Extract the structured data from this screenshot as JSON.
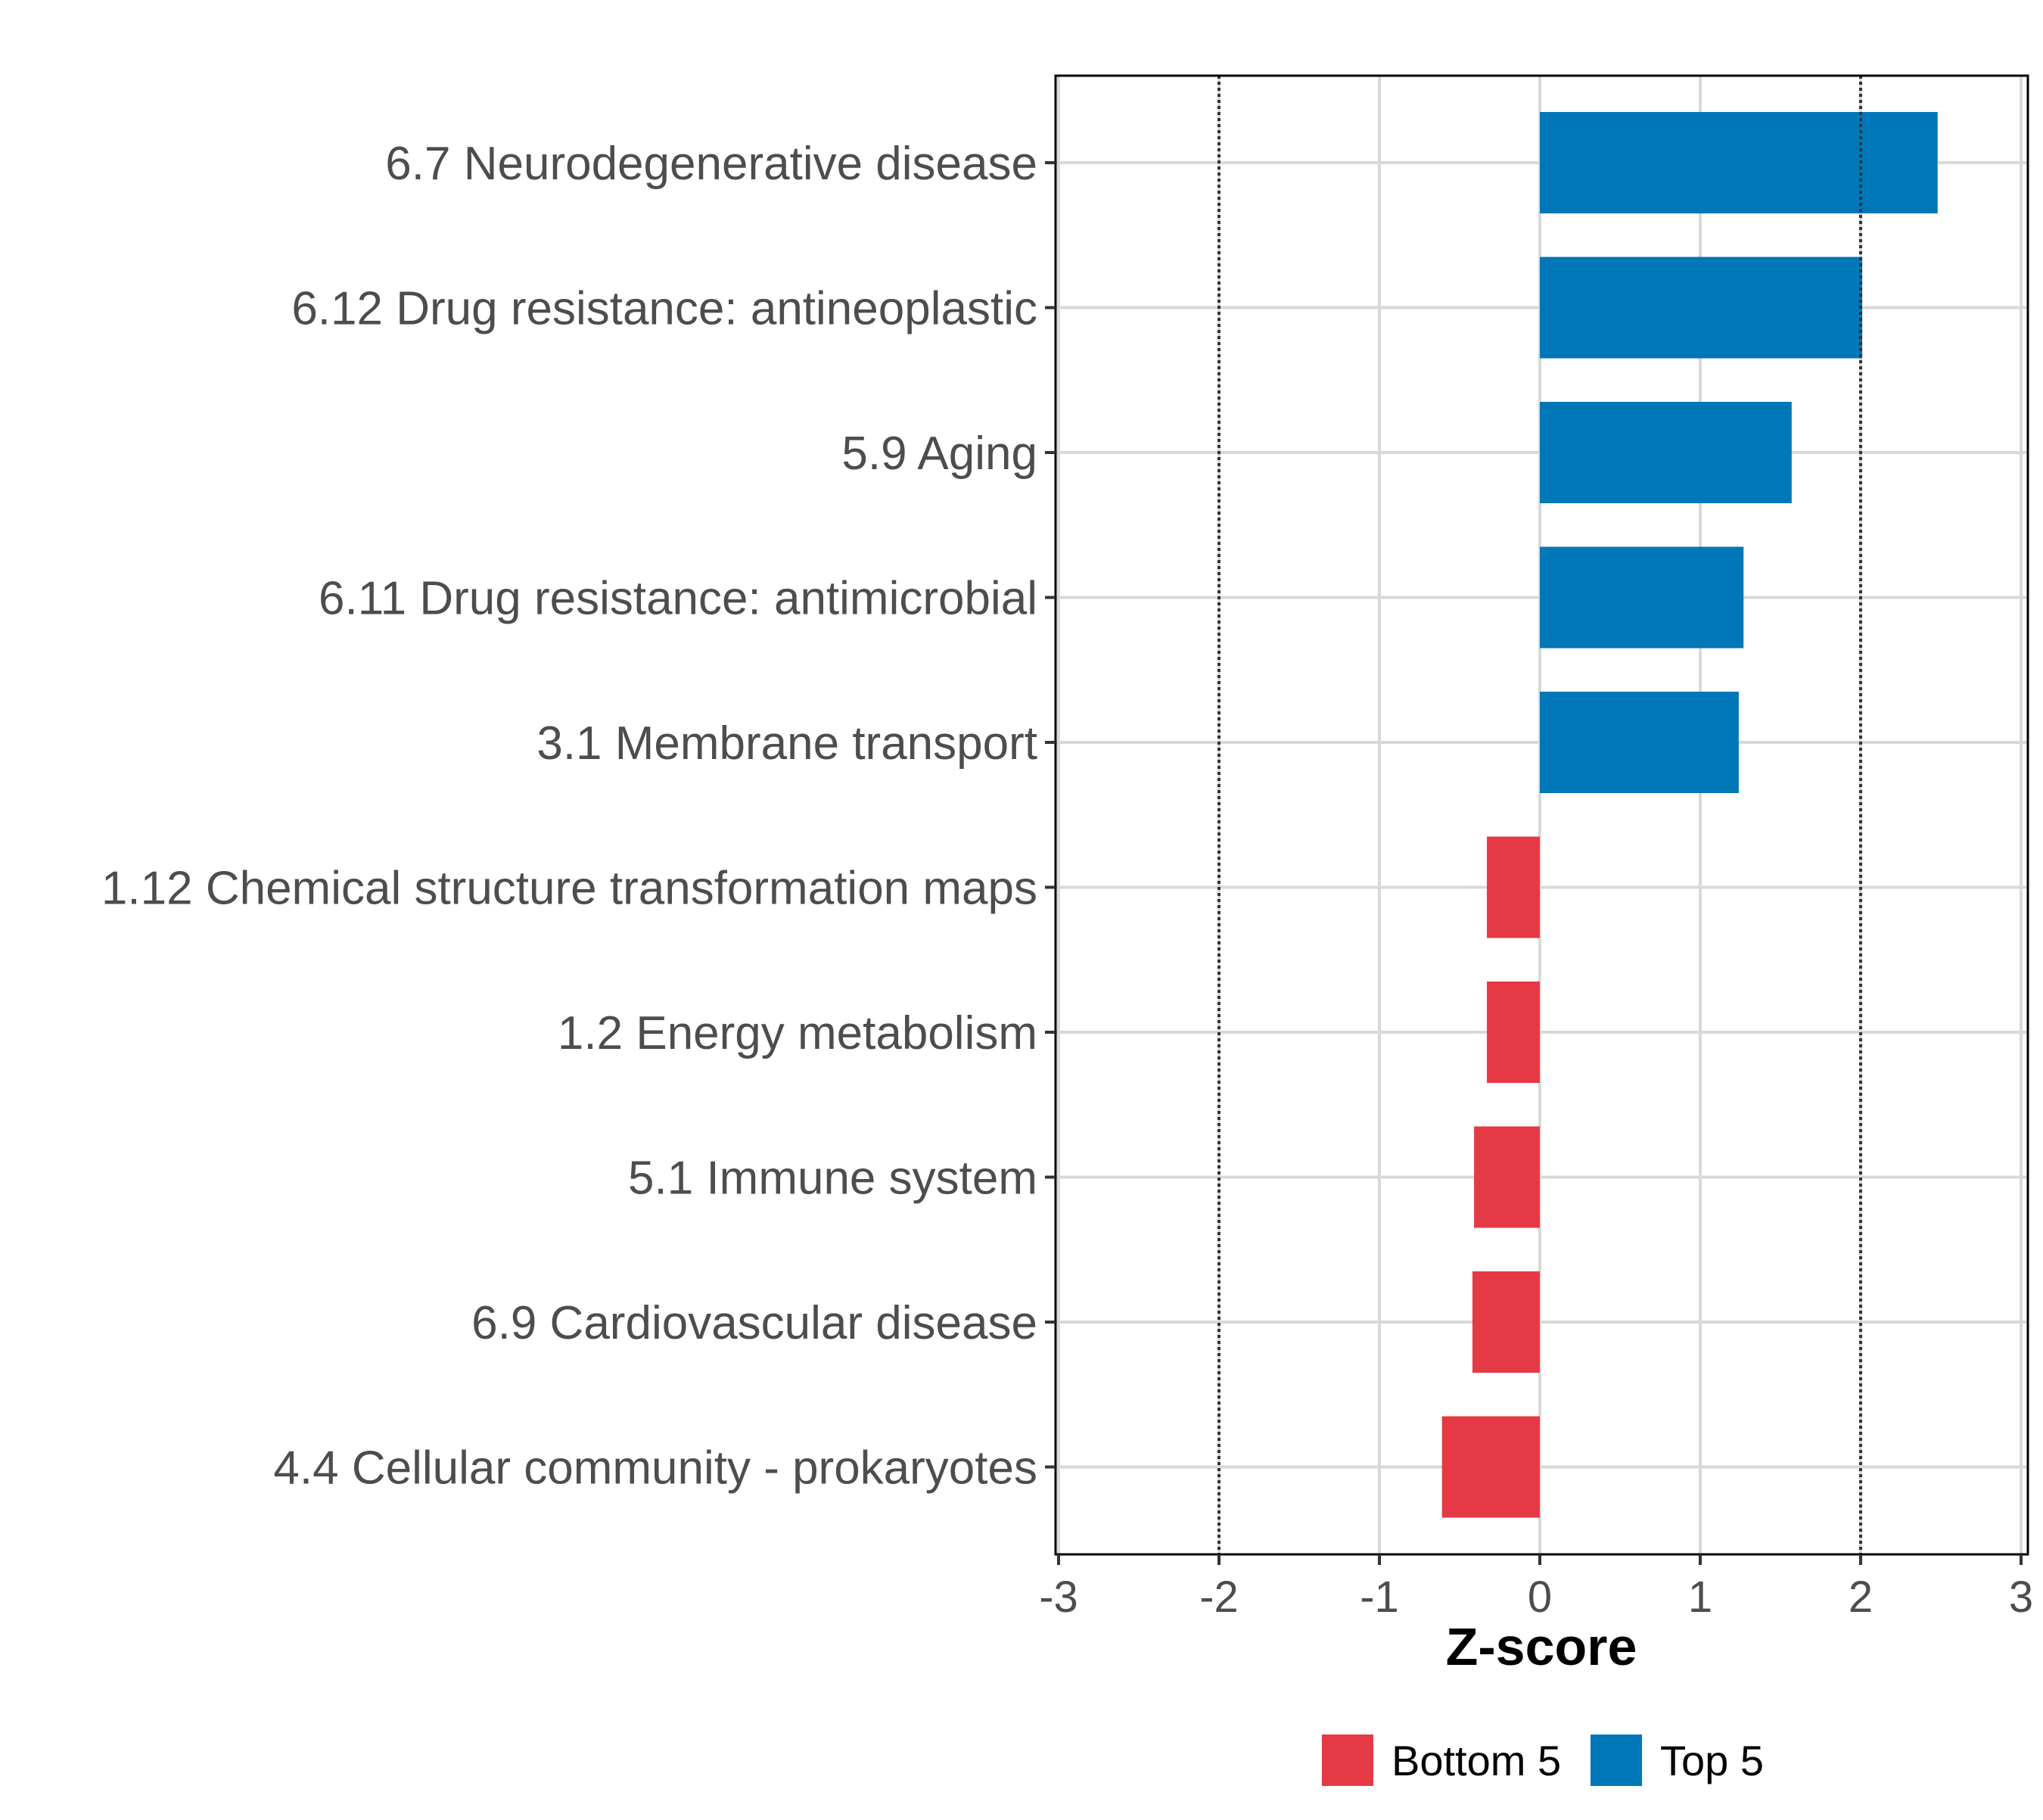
{
  "chart_data": {
    "type": "bar",
    "orientation": "horizontal",
    "title": "",
    "xlabel": "Z-score",
    "ylabel": "",
    "xlim": [
      -3,
      3
    ],
    "x_ticks": [
      -3,
      -2,
      -1,
      0,
      1,
      2,
      3
    ],
    "x_tick_labels": [
      "-3",
      "-2",
      "-1",
      "0",
      "1",
      "2",
      "3"
    ],
    "reference_lines": [
      -2,
      2
    ],
    "grid": true,
    "categories": [
      "6.7 Neurodegenerative disease",
      "6.12 Drug resistance: antineoplastic",
      "5.9 Aging",
      "6.11 Drug resistance: antimicrobial",
      "3.1 Membrane transport",
      "1.12 Chemical structure transformation maps",
      "1.2 Energy metabolism",
      "5.1 Immune system",
      "6.9 Cardiovascular disease",
      "4.4 Cellular community - prokaryotes"
    ],
    "values": [
      2.48,
      2.01,
      1.57,
      1.27,
      1.24,
      -0.33,
      -0.33,
      -0.41,
      -0.42,
      -0.61
    ],
    "groups": [
      "Top 5",
      "Top 5",
      "Top 5",
      "Top 5",
      "Top 5",
      "Bottom 5",
      "Bottom 5",
      "Bottom 5",
      "Bottom 5",
      "Bottom 5"
    ],
    "legend": {
      "position": "bottom",
      "entries": [
        {
          "name": "Bottom 5",
          "color": "#e63946"
        },
        {
          "name": "Top 5",
          "color": "#0077b6"
        }
      ]
    }
  }
}
